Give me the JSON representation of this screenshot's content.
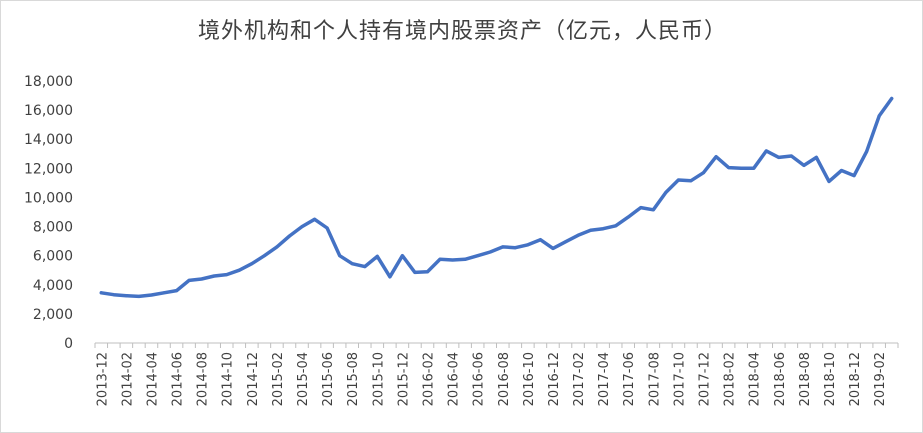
{
  "chart_data": {
    "type": "line",
    "title": "境外机构和个人持有境内股票资产（亿元，人民币）",
    "xlabel": "",
    "ylabel": "",
    "ylim": [
      0,
      18000
    ],
    "yticks": [
      "0",
      "2,000",
      "4,000",
      "6,000",
      "8,000",
      "10,000",
      "12,000",
      "14,000",
      "16,000",
      "18,000"
    ],
    "grid": false,
    "legend": "none",
    "line_color": "#4472c4",
    "x": [
      "2013-12",
      "2014-01",
      "2014-02",
      "2014-03",
      "2014-04",
      "2014-05",
      "2014-06",
      "2014-07",
      "2014-08",
      "2014-09",
      "2014-10",
      "2014-11",
      "2014-12",
      "2015-01",
      "2015-02",
      "2015-03",
      "2015-04",
      "2015-05",
      "2015-06",
      "2015-07",
      "2015-08",
      "2015-09",
      "2015-10",
      "2015-11",
      "2015-12",
      "2016-01",
      "2016-02",
      "2016-03",
      "2016-04",
      "2016-05",
      "2016-06",
      "2016-07",
      "2016-08",
      "2016-09",
      "2016-10",
      "2016-11",
      "2016-12",
      "2017-01",
      "2017-02",
      "2017-03",
      "2017-04",
      "2017-05",
      "2017-06",
      "2017-07",
      "2017-08",
      "2017-09",
      "2017-10",
      "2017-11",
      "2017-12",
      "2018-01",
      "2018-02",
      "2018-03",
      "2018-04",
      "2018-05",
      "2018-06",
      "2018-07",
      "2018-08",
      "2018-09",
      "2018-10",
      "2018-11",
      "2018-12",
      "2019-01",
      "2019-02",
      "2019-03"
    ],
    "xtick_labels": [
      "2013-12",
      "2014-02",
      "2014-04",
      "2014-06",
      "2014-08",
      "2014-10",
      "2014-12",
      "2015-02",
      "2015-04",
      "2015-06",
      "2015-08",
      "2015-10",
      "2015-12",
      "2016-02",
      "2016-04",
      "2016-06",
      "2016-08",
      "2016-10",
      "2016-12",
      "2017-02",
      "2017-04",
      "2017-06",
      "2017-08",
      "2017-10",
      "2017-12",
      "2018-02",
      "2018-04",
      "2018-06",
      "2018-08",
      "2018-10",
      "2018-12",
      "2019-02"
    ],
    "series": [
      {
        "values": [
          3450,
          3320,
          3250,
          3200,
          3300,
          3450,
          3600,
          4300,
          4400,
          4600,
          4700,
          5000,
          5450,
          6000,
          6600,
          7350,
          8000,
          8500,
          7900,
          6000,
          5450,
          5250,
          5950,
          4550,
          6000,
          4850,
          4900,
          5750,
          5700,
          5750,
          6000,
          6250,
          6600,
          6550,
          6750,
          7100,
          6500,
          6950,
          7400,
          7750,
          7850,
          8050,
          8650,
          9300,
          9150,
          10350,
          11200,
          11150,
          11700,
          12800,
          12050,
          12000,
          12000,
          13200,
          12750,
          12850,
          12200,
          12750,
          11100,
          11850,
          11500,
          13150,
          15600,
          16800
        ]
      }
    ]
  }
}
